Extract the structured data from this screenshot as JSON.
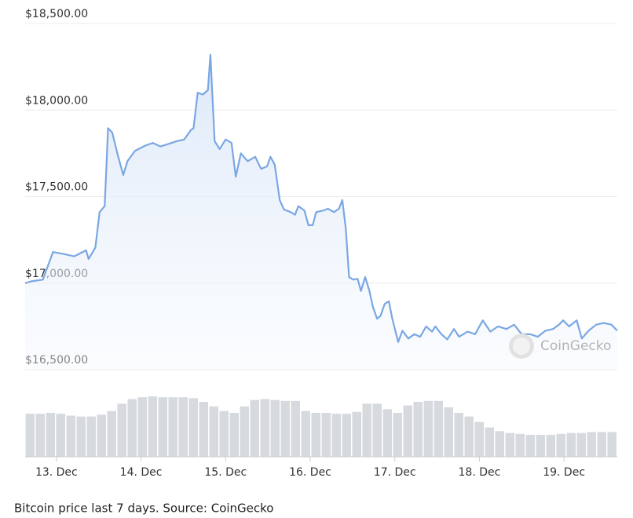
{
  "chart_data": {
    "type": "line",
    "caption": "Bitcoin price last 7 days. Source: CoinGecko",
    "watermark": "CoinGecko",
    "xlim": [
      12.63,
      19.63
    ],
    "xticks": [
      {
        "value": 13,
        "label": "13. Dec"
      },
      {
        "value": 14,
        "label": "14. Dec"
      },
      {
        "value": 15,
        "label": "15. Dec"
      },
      {
        "value": 16,
        "label": "16. Dec"
      },
      {
        "value": 17,
        "label": "17. Dec"
      },
      {
        "value": 18,
        "label": "18. Dec"
      },
      {
        "value": 19,
        "label": "19. Dec"
      }
    ],
    "ylim": [
      16500,
      18500
    ],
    "yticks": [
      {
        "value": 16500,
        "label": "$16,500.00"
      },
      {
        "value": 17000,
        "label": "$17,000.00"
      },
      {
        "value": 17500,
        "label": "$17,500.00"
      },
      {
        "value": 18000,
        "label": "$18,000.00"
      },
      {
        "value": 18500,
        "label": "$18,500.00"
      }
    ],
    "grid": true,
    "x": [
      12.63,
      12.7,
      12.84,
      12.96,
      13.07,
      13.21,
      13.35,
      13.38,
      13.46,
      13.51,
      13.57,
      13.61,
      13.66,
      13.72,
      13.79,
      13.84,
      13.93,
      14.05,
      14.14,
      14.23,
      14.33,
      14.42,
      14.51,
      14.59,
      14.62,
      14.67,
      14.73,
      14.79,
      14.82,
      14.87,
      14.93,
      15.0,
      15.07,
      15.12,
      15.18,
      15.26,
      15.35,
      15.42,
      15.49,
      15.53,
      15.58,
      15.64,
      15.69,
      15.77,
      15.82,
      15.86,
      15.93,
      15.98,
      16.03,
      16.07,
      16.16,
      16.21,
      16.28,
      16.34,
      16.38,
      16.42,
      16.46,
      16.51,
      16.56,
      16.6,
      16.65,
      16.7,
      16.74,
      16.79,
      16.83,
      16.88,
      16.93,
      16.97,
      17.04,
      17.09,
      17.16,
      17.23,
      17.3,
      17.37,
      17.44,
      17.48,
      17.55,
      17.62,
      17.7,
      17.76,
      17.86,
      17.95,
      18.04,
      18.13,
      18.22,
      18.32,
      18.41,
      18.5,
      18.6,
      18.69,
      18.78,
      18.87,
      18.94,
      18.99,
      19.06,
      19.15,
      19.21,
      19.29,
      19.38,
      19.47,
      19.56,
      19.63
    ],
    "series": [
      {
        "name": "Price",
        "color": "#7aa7e3",
        "values": [
          17000,
          17010,
          17020,
          17180,
          17170,
          17155,
          17190,
          17140,
          17205,
          17410,
          17445,
          17895,
          17870,
          17750,
          17625,
          17705,
          17765,
          17795,
          17810,
          17790,
          17805,
          17820,
          17830,
          17885,
          17895,
          18100,
          18090,
          18115,
          18320,
          17820,
          17775,
          17830,
          17810,
          17615,
          17750,
          17705,
          17730,
          17660,
          17675,
          17730,
          17685,
          17480,
          17425,
          17410,
          17395,
          17445,
          17420,
          17335,
          17335,
          17410,
          17420,
          17430,
          17410,
          17430,
          17480,
          17320,
          17035,
          17020,
          17025,
          16955,
          17035,
          16955,
          16865,
          16795,
          16810,
          16880,
          16895,
          16795,
          16660,
          16725,
          16680,
          16705,
          16690,
          16750,
          16720,
          16750,
          16705,
          16675,
          16735,
          16690,
          16720,
          16705,
          16785,
          16720,
          16750,
          16735,
          16760,
          16705,
          16705,
          16690,
          16725,
          16735,
          16760,
          16785,
          16750,
          16785,
          16680,
          16725,
          16760,
          16770,
          16760,
          16725
        ]
      }
    ],
    "volume": {
      "color": "#d6d9de",
      "values": [
        47,
        47,
        48,
        47,
        45,
        44,
        44,
        46,
        50,
        58,
        63,
        65,
        66,
        65,
        65,
        65,
        64,
        60,
        55,
        50,
        48,
        55,
        62,
        63,
        62,
        61,
        61,
        50,
        48,
        48,
        47,
        47,
        49,
        58,
        58,
        52,
        48,
        56,
        60,
        61,
        61,
        54,
        48,
        44,
        38,
        32,
        28,
        26,
        25,
        24,
        24,
        24,
        25,
        26,
        26,
        27,
        27,
        27
      ]
    }
  }
}
